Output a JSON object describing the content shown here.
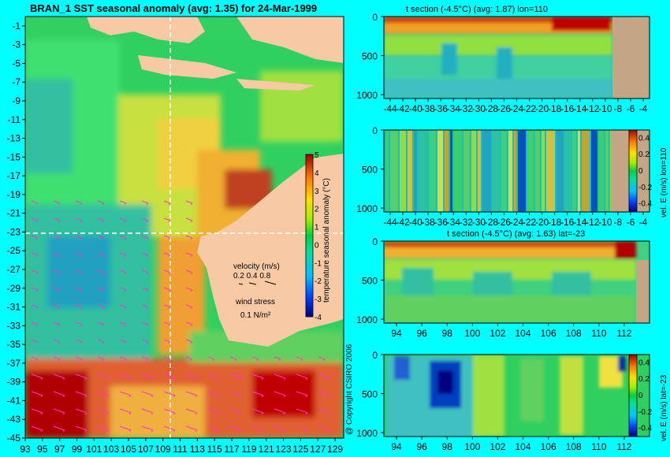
{
  "main_title": "BRAN_1  SST seasonal anomaly  (avg: 1.35) for 24-Mar-1999",
  "copyright": "@ Copyright CSIRO 2006",
  "colors": {
    "background": "#00ffff",
    "land": "#f7c9a5",
    "section_land": "#c4a585",
    "vectors": "#ff33cc"
  },
  "chart_data": [
    {
      "type": "heatmap",
      "name": "sst-map",
      "title": "BRAN_1  SST seasonal anomaly  (avg: 1.35) for 24-Mar-1999",
      "x_ticks": [
        "93",
        "95",
        "97",
        "99",
        "101",
        "103",
        "105",
        "107",
        "109",
        "111",
        "113",
        "115",
        "117",
        "119",
        "121",
        "123",
        "125",
        "127",
        "129"
      ],
      "y_ticks": [
        "-1",
        "-3",
        "-5",
        "-7",
        "-9",
        "-11",
        "-13",
        "-15",
        "-17",
        "-19",
        "-21",
        "-23",
        "-25",
        "-27",
        "-29",
        "-31",
        "-33",
        "-35",
        "-37",
        "-39",
        "-41",
        "-43",
        "-45"
      ],
      "xlim": [
        93,
        130
      ],
      "ylim": [
        -45,
        0
      ],
      "section_lines": {
        "lon": 110,
        "lat": -23
      },
      "colorbar": {
        "label": "temperature seasonal anomaly (°C)",
        "ticks": [
          "5",
          "4",
          "3",
          "2",
          "1",
          "0",
          "-1",
          "-2",
          "-3",
          "-4"
        ],
        "range": [
          -4,
          5
        ]
      },
      "legend": {
        "velocity_label": "velocity (m/s)",
        "velocity_values": "0.2 0.4 0.8",
        "wind_label": "wind stress",
        "wind_value": "0.1 N/m²"
      }
    },
    {
      "type": "heatmap",
      "name": "t-section-lon110",
      "title": "t section (-4.5°C) (avg: 1.87) lon=110",
      "x_ticks": [
        "-44",
        "-42",
        "-40",
        "-38",
        "-36",
        "-34",
        "-32",
        "-30",
        "-28",
        "-26",
        "-24",
        "-22",
        "-20",
        "-18",
        "-16",
        "-14",
        "-12",
        "-10",
        "-8",
        "-6",
        "-4"
      ],
      "y_ticks": [
        "0",
        "500",
        "1000"
      ],
      "xlim": [
        -45,
        -3
      ],
      "ylim": [
        1050,
        0
      ]
    },
    {
      "type": "heatmap",
      "name": "vel-e-section-lon110",
      "title": "",
      "x_ticks": [
        "-44",
        "-42",
        "-40",
        "-38",
        "-36",
        "-34",
        "-32",
        "-30",
        "-28",
        "-26",
        "-24",
        "-22",
        "-20",
        "-18",
        "-16",
        "-14",
        "-12",
        "-10",
        "-8",
        "-6",
        "-4"
      ],
      "y_ticks": [
        "0",
        "500",
        "1000"
      ],
      "xlim": [
        -45,
        -3
      ],
      "ylim": [
        1050,
        0
      ],
      "colorbar": {
        "label": "vel. E (m/s) lon=110",
        "ticks": [
          "0.4",
          "0.2",
          "0",
          "-0.2",
          "-0.4"
        ],
        "range": [
          -0.5,
          0.5
        ]
      }
    },
    {
      "type": "heatmap",
      "name": "t-section-lat-23",
      "title": "t section (-4.5°C) (avg: 1.63) lat=-23",
      "x_ticks": [
        "94",
        "96",
        "98",
        "100",
        "102",
        "104",
        "106",
        "108",
        "110",
        "112"
      ],
      "y_ticks": [
        "0",
        "500",
        "1000"
      ],
      "xlim": [
        93,
        114
      ],
      "ylim": [
        1050,
        0
      ]
    },
    {
      "type": "heatmap",
      "name": "vel-e-section-lat-23",
      "title": "",
      "x_ticks": [
        "94",
        "96",
        "98",
        "100",
        "102",
        "104",
        "106",
        "108",
        "110",
        "112"
      ],
      "y_ticks": [
        "0",
        "500",
        "1000"
      ],
      "xlim": [
        93,
        114
      ],
      "ylim": [
        1050,
        0
      ],
      "colorbar": {
        "label": "vel. E (m/s) lat=-23",
        "ticks": [
          "0.4",
          "0.2",
          "0",
          "-0.2",
          "-0.4"
        ],
        "range": [
          -0.5,
          0.5
        ]
      }
    }
  ]
}
